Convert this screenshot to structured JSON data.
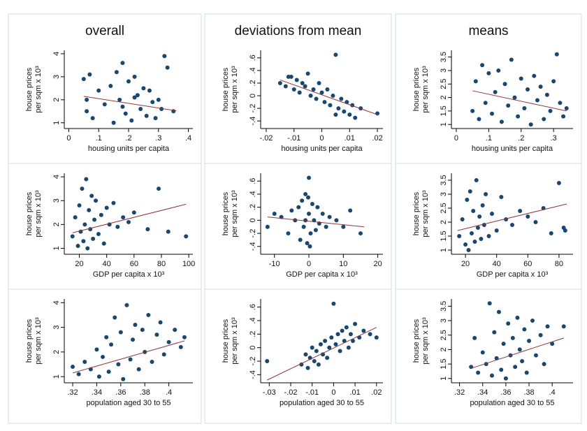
{
  "chart_data": [
    {
      "type": "scatter",
      "title": "overall",
      "x_label": "housing units per capita",
      "y_label": [
        "house prices",
        "per sqm x 10³"
      ],
      "color": "#1a476f",
      "xlim": [
        -0.015,
        0.415
      ],
      "ylim": [
        0.75,
        4.15
      ],
      "xticks": [
        0,
        {
          "value": 0.1,
          "label": ".1"
        },
        {
          "value": 0.2,
          "label": ".2"
        },
        {
          "value": 0.3,
          "label": ".3"
        },
        {
          "value": 0.4,
          "label": ".4"
        }
      ],
      "yticks": [
        1,
        2,
        3,
        4
      ],
      "x": [
        0.05,
        0.06,
        0.07,
        0.08,
        0.1,
        0.12,
        0.14,
        0.15,
        0.16,
        0.17,
        0.18,
        0.19,
        0.2,
        0.21,
        0.22,
        0.23,
        0.24,
        0.25,
        0.26,
        0.27,
        0.28,
        0.29,
        0.3,
        0.31,
        0.32,
        0.33,
        0.35,
        0.06,
        0.18,
        0.22
      ],
      "y": [
        2.9,
        1.5,
        3.1,
        1.2,
        2.4,
        1.8,
        2.6,
        1.0,
        3.2,
        2.0,
        3.6,
        1.4,
        2.8,
        1.1,
        3.0,
        2.2,
        1.6,
        2.5,
        1.3,
        2.4,
        1.9,
        1.2,
        2.0,
        1.6,
        3.9,
        3.4,
        1.5,
        2.0,
        1.7,
        2.1
      ],
      "fit": {
        "x": [
          0.05,
          0.36
        ],
        "y": [
          2.15,
          1.52
        ],
        "color": "#90353b"
      }
    },
    {
      "type": "scatter",
      "title": "deviations from mean",
      "x_label": "housing units per capita",
      "y_label": [
        "house prices",
        "per sqm x 10³"
      ],
      "color": "#1a476f",
      "xlim": [
        -0.022,
        0.022
      ],
      "ylim": [
        -0.52,
        0.72
      ],
      "xticks": [
        {
          "value": -0.02,
          "label": "-.02"
        },
        {
          "value": -0.01,
          "label": "-.01"
        },
        0,
        {
          "value": 0.01,
          "label": ".01"
        },
        {
          "value": 0.02,
          "label": ".02"
        }
      ],
      "yticks": [
        {
          "value": -0.4,
          "label": "-.4"
        },
        {
          "value": -0.2,
          "label": "-.2"
        },
        0,
        {
          "value": 0.2,
          "label": ".2"
        },
        {
          "value": 0.4,
          "label": ".4"
        },
        {
          "value": 0.6,
          "label": ".6"
        }
      ],
      "x": [
        -0.015,
        -0.013,
        -0.012,
        -0.01,
        -0.009,
        -0.008,
        -0.007,
        -0.006,
        -0.005,
        -0.004,
        -0.003,
        -0.002,
        -0.001,
        0,
        0.001,
        0.002,
        0.003,
        0.004,
        0.005,
        0.006,
        0.007,
        0.008,
        0.009,
        0.01,
        0.011,
        0.012,
        0.014,
        0.02,
        0.005,
        -0.011
      ],
      "y": [
        0.2,
        0.15,
        0.3,
        0.1,
        0.25,
        0.05,
        0.2,
        0.15,
        0.35,
        0.0,
        0.1,
        -0.05,
        0.2,
        0.05,
        -0.1,
        0.1,
        -0.15,
        0.0,
        0.65,
        -0.2,
        -0.05,
        -0.25,
        -0.1,
        -0.3,
        -0.15,
        -0.35,
        -0.2,
        -0.28,
        -0.3,
        0.3
      ],
      "fit": {
        "x": [
          -0.015,
          0.02
        ],
        "y": [
          0.25,
          -0.3
        ],
        "color": "#90353b"
      }
    },
    {
      "type": "scatter",
      "title": "means",
      "x_label": "housing units per capita",
      "y_label": [
        "house prices",
        "per sqm x 10³"
      ],
      "color": "#1a476f",
      "xlim": [
        -0.015,
        0.36
      ],
      "ylim": [
        0.85,
        3.75
      ],
      "xticks": [
        0,
        {
          "value": 0.1,
          "label": ".1"
        },
        {
          "value": 0.2,
          "label": ".2"
        },
        {
          "value": 0.3,
          "label": ".3"
        }
      ],
      "yticks": [
        1,
        1.5,
        2,
        2.5,
        3,
        3.5
      ],
      "x": [
        0.05,
        0.06,
        0.07,
        0.08,
        0.09,
        0.1,
        0.11,
        0.12,
        0.13,
        0.14,
        0.15,
        0.16,
        0.17,
        0.18,
        0.19,
        0.2,
        0.21,
        0.22,
        0.23,
        0.24,
        0.25,
        0.26,
        0.27,
        0.28,
        0.29,
        0.3,
        0.31,
        0.32,
        0.33,
        0.34
      ],
      "y": [
        1.5,
        2.6,
        1.2,
        3.2,
        1.8,
        2.9,
        1.4,
        2.2,
        3.0,
        1.1,
        2.5,
        1.7,
        3.4,
        2.0,
        1.3,
        2.7,
        1.6,
        2.3,
        1.0,
        2.8,
        1.9,
        2.4,
        1.2,
        2.1,
        1.5,
        2.6,
        3.6,
        1.8,
        1.3,
        1.6
      ],
      "fit": {
        "x": [
          0.05,
          0.34
        ],
        "y": [
          2.25,
          1.5
        ],
        "color": "#90353b"
      }
    },
    {
      "type": "scatter",
      "x_label": "GDP per capita x 10³",
      "y_label": [
        "house prices",
        "per sqm x 10³"
      ],
      "color": "#1a476f",
      "xlim": [
        9,
        103
      ],
      "ylim": [
        0.75,
        4.15
      ],
      "xticks": [
        20,
        40,
        60,
        80,
        100
      ],
      "yticks": [
        1,
        2,
        3,
        4
      ],
      "x": [
        15,
        17,
        19,
        20,
        21,
        22,
        23,
        24,
        25,
        26,
        27,
        28,
        29,
        30,
        31,
        32,
        34,
        36,
        38,
        40,
        42,
        45,
        48,
        52,
        56,
        60,
        70,
        78,
        85,
        98
      ],
      "y": [
        1.5,
        2.3,
        1.1,
        2.8,
        1.7,
        3.5,
        1.3,
        2.0,
        3.9,
        1.0,
        2.6,
        1.8,
        3.2,
        1.4,
        2.2,
        3.0,
        1.6,
        2.4,
        1.2,
        2.7,
        2.0,
        2.9,
        1.9,
        2.3,
        2.1,
        2.5,
        1.8,
        3.5,
        1.7,
        1.5
      ],
      "fit": {
        "x": [
          15,
          98
        ],
        "y": [
          1.65,
          2.85
        ],
        "color": "#90353b"
      }
    },
    {
      "type": "scatter",
      "x_label": "GDP per capita x 10³",
      "y_label": [
        "house prices",
        "per sqm x 10³"
      ],
      "color": "#1a476f",
      "xlim": [
        -14,
        21.5
      ],
      "ylim": [
        -0.52,
        0.72
      ],
      "xticks": [
        -10,
        0,
        10,
        20
      ],
      "yticks": [
        {
          "value": -0.4,
          "label": "-.4"
        },
        {
          "value": -0.2,
          "label": "-.2"
        },
        0,
        {
          "value": 0.2,
          "label": ".2"
        },
        {
          "value": 0.4,
          "label": ".4"
        },
        {
          "value": 0.6,
          "label": ".6"
        }
      ],
      "x": [
        -12,
        -10,
        -8,
        -6,
        -5,
        -4,
        -3,
        -2.5,
        -2,
        -1.5,
        -1,
        -0.5,
        0,
        0,
        0.5,
        1,
        1.5,
        2,
        2.5,
        3,
        4,
        5,
        6,
        8,
        10,
        12,
        15,
        -1,
        0.3,
        -0.2
      ],
      "y": [
        -0.1,
        0.1,
        0.05,
        -0.2,
        0.15,
        0.0,
        0.2,
        -0.3,
        0.3,
        -0.1,
        0.4,
        -0.35,
        0.65,
        0.1,
        -0.2,
        0.25,
        0.0,
        -0.15,
        0.2,
        -0.05,
        0.1,
        -0.1,
        0.05,
        0.0,
        -0.1,
        0.15,
        -0.2,
        0.0,
        -0.4,
        0.35
      ],
      "fit": {
        "x": [
          -12,
          16
        ],
        "y": [
          0.05,
          -0.1
        ],
        "color": "#90353b"
      }
    },
    {
      "type": "scatter",
      "x_label": "GDP per capita x 10³",
      "y_label": [
        "house prices",
        "per sqm x 10³"
      ],
      "color": "#1a476f",
      "xlim": [
        11,
        89
      ],
      "ylim": [
        0.85,
        3.75
      ],
      "xticks": [
        20,
        40,
        60,
        80
      ],
      "yticks": [
        1,
        1.5,
        2,
        2.5,
        3,
        3.5
      ],
      "x": [
        16,
        18,
        20,
        21,
        22,
        23,
        24,
        25,
        26,
        27,
        28,
        29,
        30,
        31,
        32,
        33,
        35,
        37,
        40,
        43,
        46,
        50,
        55,
        60,
        65,
        70,
        75,
        80,
        84,
        83
      ],
      "y": [
        1.5,
        2.1,
        1.2,
        2.8,
        1.0,
        3.1,
        1.6,
        2.4,
        1.3,
        3.5,
        1.8,
        2.2,
        1.4,
        2.6,
        1.9,
        3.0,
        1.5,
        2.3,
        1.7,
        2.9,
        2.1,
        1.9,
        2.4,
        2.2,
        2.0,
        2.5,
        1.6,
        3.4,
        1.7,
        1.8
      ],
      "fit": {
        "x": [
          15,
          85
        ],
        "y": [
          1.7,
          2.65
        ],
        "color": "#90353b"
      }
    },
    {
      "type": "scatter",
      "x_label": "population aged 30 to 55",
      "y_label": [
        "house prices",
        "per sqm x 10³"
      ],
      "color": "#1a476f",
      "xlim": [
        0.313,
        0.42
      ],
      "ylim": [
        0.75,
        4.15
      ],
      "xticks": [
        {
          "value": 0.32,
          "label": ".32"
        },
        {
          "value": 0.34,
          "label": ".34"
        },
        {
          "value": 0.36,
          "label": ".36"
        },
        {
          "value": 0.38,
          "label": ".38"
        },
        {
          "value": 0.4,
          "label": ".4"
        }
      ],
      "yticks": [
        1,
        2,
        3,
        4
      ],
      "x": [
        0.32,
        0.325,
        0.33,
        0.335,
        0.34,
        0.342,
        0.345,
        0.348,
        0.35,
        0.352,
        0.355,
        0.358,
        0.36,
        0.362,
        0.365,
        0.368,
        0.37,
        0.372,
        0.375,
        0.378,
        0.38,
        0.383,
        0.386,
        0.39,
        0.393,
        0.396,
        0.4,
        0.405,
        0.41,
        0.413
      ],
      "y": [
        1.4,
        1.1,
        1.6,
        1.3,
        2.1,
        1.0,
        1.8,
        2.6,
        1.2,
        2.3,
        3.4,
        1.5,
        2.8,
        0.9,
        3.9,
        1.7,
        2.5,
        3.1,
        1.3,
        2.9,
        2.0,
        3.5,
        1.6,
        2.7,
        3.2,
        1.9,
        2.4,
        2.9,
        2.2,
        2.6
      ],
      "fit": {
        "x": [
          0.32,
          0.413
        ],
        "y": [
          1.15,
          2.45
        ],
        "color": "#90353b"
      }
    },
    {
      "type": "scatter",
      "x_label": "population aged 30 to 55",
      "y_label": [
        "house prices",
        "per sqm x 10³"
      ],
      "color": "#1a476f",
      "xlim": [
        -0.034,
        0.023
      ],
      "ylim": [
        -0.52,
        0.72
      ],
      "xticks": [
        {
          "value": -0.03,
          "label": "-.03"
        },
        {
          "value": -0.02,
          "label": "-.02"
        },
        {
          "value": -0.01,
          "label": "-.01"
        },
        0,
        {
          "value": 0.01,
          "label": ".01"
        },
        {
          "value": 0.02,
          "label": ".02"
        }
      ],
      "yticks": [
        {
          "value": -0.4,
          "label": "-.4"
        },
        {
          "value": -0.2,
          "label": "-.2"
        },
        0,
        {
          "value": 0.2,
          "label": ".2"
        },
        {
          "value": 0.4,
          "label": ".4"
        },
        {
          "value": 0.6,
          "label": ".6"
        }
      ],
      "x": [
        -0.031,
        -0.015,
        -0.013,
        -0.012,
        -0.011,
        -0.01,
        -0.009,
        -0.008,
        -0.007,
        -0.006,
        -0.005,
        -0.004,
        -0.003,
        -0.002,
        -0.001,
        0,
        0.001,
        0.002,
        0.003,
        0.004,
        0.005,
        0.006,
        0.007,
        0.008,
        0.009,
        0.01,
        0.012,
        0.014,
        0.017,
        0.02
      ],
      "y": [
        -0.2,
        -0.25,
        -0.1,
        -0.3,
        -0.15,
        0.0,
        -0.2,
        -0.05,
        -0.25,
        0.05,
        -0.1,
        0.1,
        -0.15,
        0.0,
        0.15,
        0.65,
        0.05,
        0.2,
        -0.05,
        0.25,
        0.1,
        0.3,
        0.0,
        0.2,
        0.1,
        0.35,
        0.15,
        0.25,
        0.2,
        0.15
      ],
      "fit": {
        "x": [
          -0.031,
          0.02
        ],
        "y": [
          -0.48,
          0.3
        ],
        "color": "#90353b"
      }
    },
    {
      "type": "scatter",
      "x_label": "population aged 30 to 55",
      "y_label": [
        "house prices",
        "per sqm x 10³"
      ],
      "color": "#1a476f",
      "xlim": [
        0.313,
        0.418
      ],
      "ylim": [
        0.85,
        3.75
      ],
      "xticks": [
        {
          "value": 0.32,
          "label": ".32"
        },
        {
          "value": 0.34,
          "label": ".34"
        },
        {
          "value": 0.36,
          "label": ".36"
        },
        {
          "value": 0.38,
          "label": ".38"
        },
        {
          "value": 0.4,
          "label": ".4"
        }
      ],
      "yticks": [
        1,
        1.5,
        2,
        2.5,
        3,
        3.5
      ],
      "x": [
        0.33,
        0.333,
        0.336,
        0.34,
        0.343,
        0.346,
        0.348,
        0.35,
        0.352,
        0.354,
        0.356,
        0.358,
        0.36,
        0.362,
        0.364,
        0.366,
        0.368,
        0.37,
        0.372,
        0.374,
        0.376,
        0.378,
        0.38,
        0.383,
        0.386,
        0.39,
        0.393,
        0.396,
        0.4,
        0.41
      ],
      "y": [
        1.4,
        2.4,
        1.2,
        1.9,
        1.5,
        3.6,
        1.1,
        2.6,
        1.7,
        3.3,
        1.3,
        2.2,
        1.0,
        2.9,
        1.8,
        2.4,
        1.4,
        3.1,
        2.0,
        1.6,
        2.7,
        1.2,
        2.3,
        3.0,
        1.8,
        2.5,
        1.5,
        2.8,
        2.2,
        2.8
      ],
      "fit": {
        "x": [
          0.33,
          0.41
        ],
        "y": [
          1.35,
          2.4
        ],
        "color": "#90353b"
      }
    }
  ]
}
